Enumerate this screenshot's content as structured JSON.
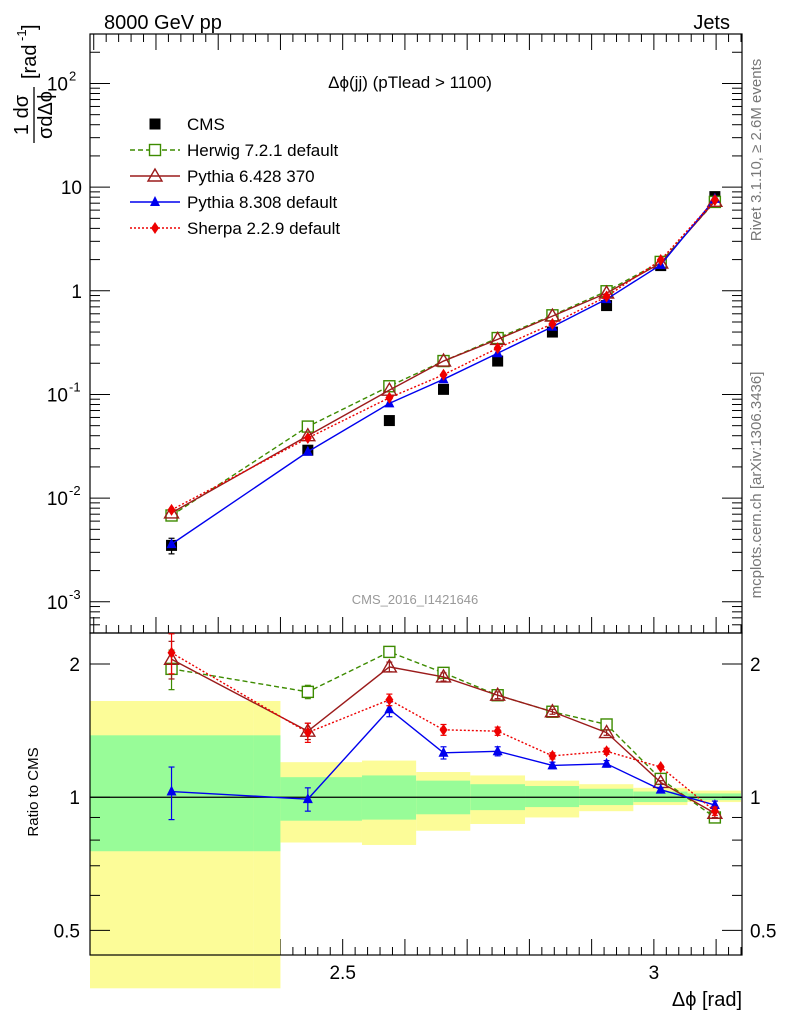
{
  "header": {
    "left_label": "8000 GeV pp",
    "right_label": "Jets",
    "plot_title": "Δϕ(jj) (pTlead >  1100)",
    "side_label_top": "Rivet 3.1.10, ≥ 2.6M events",
    "side_label_bottom": "mcplots.cern.ch [arXiv:1306.3436]",
    "analysis_id": "CMS_2016_I1421646"
  },
  "chart_data": [
    {
      "type": "line",
      "panel": "main",
      "ylabel": "1/σ dσ/dΔϕ [rad⁻¹]",
      "ylabel_parts": {
        "num": "1 dσ",
        "den": "σdΔϕ",
        "unit": "[rad",
        "unit_sup": "-1",
        "unit_close": "]"
      },
      "yscale": "log",
      "ylim": [
        0.0005,
        300
      ],
      "xlim": [
        2.094,
        3.1416
      ],
      "y_tick_labels": [
        {
          "value": 0.001,
          "base": "10",
          "exp": "-3"
        },
        {
          "value": 0.01,
          "base": "10",
          "exp": "-2"
        },
        {
          "value": 0.1,
          "base": "10",
          "exp": "-1"
        },
        {
          "value": 1,
          "base": "1",
          "exp": ""
        },
        {
          "value": 10,
          "base": "10",
          "exp": ""
        },
        {
          "value": 100,
          "base": "10",
          "exp": "2"
        }
      ],
      "x": [
        2.225,
        2.444,
        2.575,
        2.662,
        2.749,
        2.837,
        2.924,
        3.011,
        3.098
      ],
      "series": [
        {
          "name": "CMS",
          "color": "#000000",
          "marker": "square-filled",
          "style": "none",
          "values": [
            0.0035,
            0.029,
            0.056,
            0.112,
            0.21,
            0.4,
            0.72,
            1.75,
            8.1
          ],
          "errors": [
            0.0006,
            0.002,
            0.003,
            0.005,
            0.01,
            0.02,
            0.03,
            0.08,
            0.3
          ]
        },
        {
          "name": "Herwig 7.2.1 default",
          "color": "#3d8b00",
          "marker": "square-open",
          "style": "dashed",
          "values": [
            0.0068,
            0.049,
            0.12,
            0.21,
            0.35,
            0.58,
            0.99,
            1.9,
            7.2
          ]
        },
        {
          "name": "Pythia 6.428 370",
          "color": "#9b1b1b",
          "marker": "triangle-open",
          "style": "solid",
          "values": [
            0.0072,
            0.04,
            0.11,
            0.21,
            0.34,
            0.57,
            0.95,
            1.85,
            7.3
          ]
        },
        {
          "name": "Pythia 8.308 default",
          "color": "#0000ee",
          "marker": "triangle-filled",
          "style": "solid",
          "values": [
            0.0036,
            0.028,
            0.082,
            0.14,
            0.25,
            0.45,
            0.83,
            1.78,
            7.7
          ]
        },
        {
          "name": "Sherpa 2.2.9 default",
          "color": "#ee0000",
          "marker": "diamond-filled",
          "style": "dotted",
          "values": [
            0.0077,
            0.038,
            0.093,
            0.155,
            0.28,
            0.48,
            0.88,
            1.98,
            7.5
          ]
        }
      ]
    },
    {
      "type": "line",
      "panel": "ratio",
      "ylabel": "Ratio to CMS",
      "xlabel": "Δϕ [rad]",
      "yscale": "log",
      "ylim": [
        0.44,
        2.35
      ],
      "xlim": [
        2.094,
        3.1416
      ],
      "y_tick_labels": [
        {
          "value": 0.5,
          "label": "0.5"
        },
        {
          "value": 1,
          "label": "1"
        },
        {
          "value": 2,
          "label": "2"
        }
      ],
      "x_tick_labels": [
        {
          "value": 2.5,
          "label": "2.5"
        },
        {
          "value": 3,
          "label": "3"
        }
      ],
      "bands": {
        "edges": [
          2.094,
          2.356,
          2.4,
          2.531,
          2.618,
          2.705,
          2.793,
          2.88,
          2.967,
          3.054,
          3.1416
        ],
        "inner_color": "#98fc98",
        "outer_color": "#fcfc98",
        "inner_lo": [
          0.755,
          0.755,
          0.885,
          0.89,
          0.915,
          0.935,
          0.95,
          0.96,
          0.975,
          0.985
        ],
        "inner_hi": [
          1.38,
          1.38,
          1.11,
          1.12,
          1.09,
          1.07,
          1.06,
          1.045,
          1.03,
          1.02
        ],
        "outer_lo": [
          0.37,
          0.37,
          0.79,
          0.78,
          0.84,
          0.87,
          0.9,
          0.93,
          0.96,
          0.975
        ],
        "outer_hi": [
          1.65,
          1.65,
          1.2,
          1.21,
          1.14,
          1.12,
          1.09,
          1.07,
          1.05,
          1.035
        ]
      },
      "x": [
        2.225,
        2.444,
        2.575,
        2.662,
        2.749,
        2.837,
        2.924,
        3.011,
        3.098
      ],
      "series": [
        {
          "name": "Herwig 7.2.1 default",
          "color": "#3d8b00",
          "marker": "square-open",
          "style": "dashed",
          "values": [
            1.95,
            1.73,
            2.13,
            1.91,
            1.7,
            1.56,
            1.46,
            1.1,
            0.9
          ],
          "errors": [
            0.2,
            0.06,
            0.05,
            0.04,
            0.03,
            0.02,
            0.02,
            0.01,
            0.02
          ]
        },
        {
          "name": "Pythia 6.428 370",
          "color": "#9b1b1b",
          "marker": "triangle-open",
          "style": "solid",
          "values": [
            2.05,
            1.41,
            1.97,
            1.87,
            1.7,
            1.56,
            1.4,
            1.08,
            0.92
          ],
          "errors": [
            0.2,
            0.06,
            0.05,
            0.04,
            0.03,
            0.02,
            0.02,
            0.01,
            0.02
          ]
        },
        {
          "name": "Pythia 8.308 default",
          "color": "#0000ee",
          "marker": "triangle-filled",
          "style": "solid",
          "values": [
            1.03,
            0.99,
            1.58,
            1.26,
            1.27,
            1.18,
            1.19,
            1.04,
            0.96
          ],
          "errors": [
            0.14,
            0.06,
            0.06,
            0.04,
            0.03,
            0.02,
            0.02,
            0.01,
            0.02
          ]
        },
        {
          "name": "Sherpa 2.2.9 default",
          "color": "#ee0000",
          "marker": "diamond-filled",
          "style": "dotted",
          "values": [
            2.12,
            1.4,
            1.66,
            1.42,
            1.41,
            1.24,
            1.27,
            1.17,
            0.93
          ],
          "errors": [
            0.22,
            0.07,
            0.05,
            0.04,
            0.03,
            0.02,
            0.02,
            0.01,
            0.02
          ]
        }
      ]
    }
  ]
}
